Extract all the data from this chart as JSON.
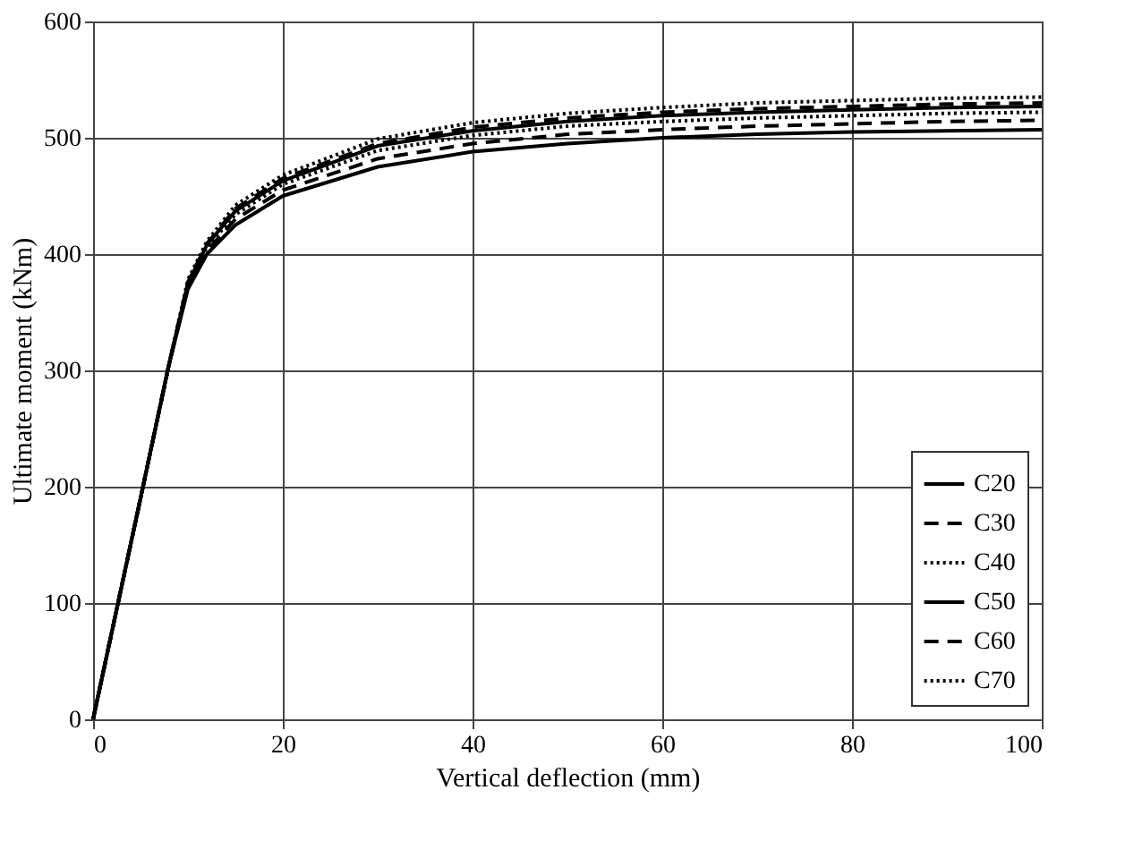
{
  "chart_data": {
    "type": "line",
    "xlabel": "Vertical deflection (mm)",
    "ylabel": "Ultimate moment (kNm)",
    "x": [
      0,
      5,
      8,
      10,
      12,
      15,
      20,
      30,
      40,
      50,
      60,
      70,
      80,
      90,
      100
    ],
    "series": [
      {
        "name": "C20",
        "color": "#000000",
        "line_style": "solid",
        "values": [
          0,
          190,
          305,
          370,
          400,
          425,
          450,
          475,
          488,
          495,
          500,
          503,
          505,
          506,
          507
        ]
      },
      {
        "name": "C30",
        "color": "#000000",
        "line_style": "dashed",
        "values": [
          0,
          190,
          305,
          372,
          403,
          430,
          455,
          482,
          495,
          503,
          507,
          510,
          512,
          514,
          515
        ]
      },
      {
        "name": "C40",
        "color": "#000000",
        "line_style": "dotted",
        "values": [
          0,
          190,
          305,
          374,
          406,
          434,
          460,
          489,
          502,
          510,
          514,
          517,
          519,
          521,
          522
        ]
      },
      {
        "name": "C50",
        "color": "#000000",
        "line_style": "solid",
        "values": [
          0,
          190,
          305,
          375,
          408,
          437,
          463,
          493,
          506,
          514,
          519,
          522,
          524,
          526,
          527
        ]
      },
      {
        "name": "C60",
        "color": "#000000",
        "line_style": "dashed",
        "values": [
          0,
          190,
          305,
          376,
          409,
          439,
          465,
          495,
          509,
          517,
          522,
          525,
          527,
          529,
          530
        ]
      },
      {
        "name": "C70",
        "color": "#000000",
        "line_style": "dotted",
        "values": [
          0,
          190,
          305,
          378,
          411,
          442,
          468,
          499,
          513,
          521,
          526,
          530,
          532,
          534,
          535
        ]
      }
    ],
    "xlim": [
      0,
      100
    ],
    "xticks": [
      0,
      20,
      40,
      60,
      80,
      100
    ],
    "ylim": [
      0,
      600
    ],
    "yticks": [
      0,
      100,
      200,
      300,
      400,
      500,
      600
    ],
    "grid": true,
    "legend": "bottom right",
    "marker": "none"
  }
}
